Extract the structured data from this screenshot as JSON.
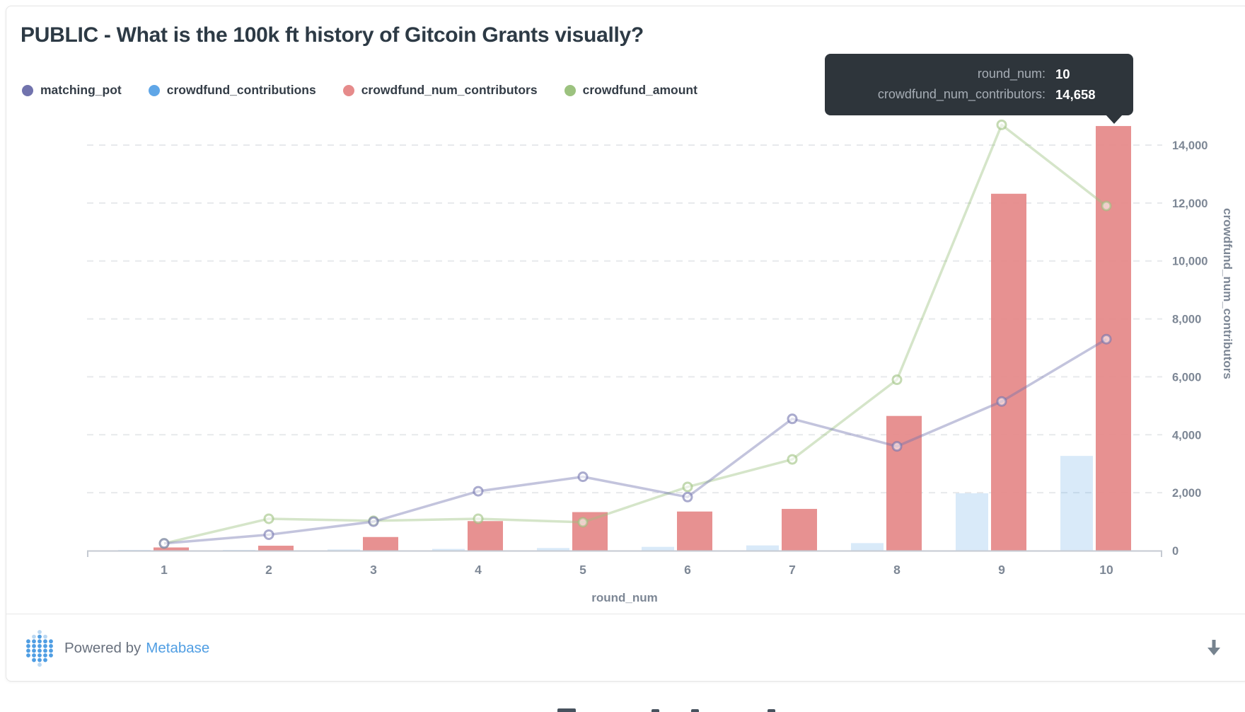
{
  "card": {
    "title": "PUBLIC - What is the 100k ft history of Gitcoin Grants visually?"
  },
  "legend": {
    "items": [
      {
        "label": "matching_pot",
        "color": "#7173AD"
      },
      {
        "label": "crowdfund_contributions",
        "color": "#5FA6E7"
      },
      {
        "label": "crowdfund_num_contributors",
        "color": "#E68B8B"
      },
      {
        "label": "crowdfund_amount",
        "color": "#9CC27F"
      }
    ]
  },
  "tooltip": {
    "rows": [
      {
        "label": "round_num:",
        "value": "10"
      },
      {
        "label": "crowdfund_num_contributors:",
        "value": "14,658"
      }
    ]
  },
  "axes": {
    "x_title": "round_num",
    "y_right_title": "crowdfund_num_contributors",
    "x_ticks": [
      "1",
      "2",
      "3",
      "4",
      "5",
      "6",
      "7",
      "8",
      "9",
      "10"
    ],
    "y_ticks": [
      "0",
      "2,000",
      "4,000",
      "6,000",
      "8,000",
      "10,000",
      "12,000",
      "14,000"
    ]
  },
  "chart_data": {
    "type": "combo",
    "x": [
      1,
      2,
      3,
      4,
      5,
      6,
      7,
      8,
      9,
      10
    ],
    "xlabel": "round_num",
    "ylabel_right": "crowdfund_num_contributors",
    "ylim": [
      0,
      15000
    ],
    "ytick_values": [
      0,
      2000,
      4000,
      6000,
      8000,
      10000,
      12000,
      14000
    ],
    "grid": "horizontal-dashed",
    "legend_position": "top-left",
    "series": [
      {
        "name": "matching_pot",
        "type": "line",
        "color": "#7173AD",
        "dimmed": true,
        "values": [
          250,
          550,
          1000,
          2050,
          2550,
          1850,
          4550,
          3600,
          5150,
          7300
        ]
      },
      {
        "name": "crowdfund_contributions",
        "type": "bar",
        "color": "#509EE3",
        "dimmed": true,
        "values": [
          10,
          20,
          40,
          60,
          90,
          130,
          180,
          260,
          1980,
          3270
        ]
      },
      {
        "name": "crowdfund_num_contributors",
        "type": "bar",
        "color": "#E68B8B",
        "dimmed": false,
        "values": [
          110,
          170,
          470,
          1020,
          1330,
          1350,
          1440,
          4650,
          12320,
          14658
        ]
      },
      {
        "name": "crowdfund_amount",
        "type": "line",
        "color": "#9CC27F",
        "dimmed": true,
        "values": [
          250,
          1100,
          1030,
          1100,
          980,
          2200,
          3150,
          5900,
          14700,
          11900
        ]
      }
    ],
    "hover": {
      "round_num": 10,
      "series": "crowdfund_num_contributors",
      "value": 14658
    }
  },
  "footer": {
    "powered_by": "Powered by",
    "brand": "Metabase"
  }
}
